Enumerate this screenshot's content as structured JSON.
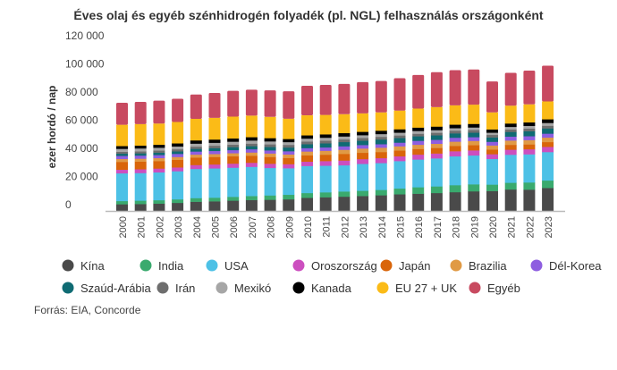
{
  "chart_data": {
    "type": "bar",
    "stacked": true,
    "title": "Éves olaj és egyéb szénhidrogén folyadék (pl. NGL) felhasználás országonként",
    "ylabel": "ezer hordó / nap",
    "xlabel": "",
    "ylim": [
      0,
      120000
    ],
    "yticks": [
      "0",
      "20 000",
      "40 000",
      "60 000",
      "80 000",
      "100 000",
      "120 000"
    ],
    "ytick_values": [
      0,
      20000,
      40000,
      60000,
      80000,
      100000,
      120000
    ],
    "grid": false,
    "legend_position": "bottom",
    "categories": [
      "2000",
      "2001",
      "2002",
      "2003",
      "2004",
      "2005",
      "2006",
      "2007",
      "2008",
      "2009",
      "2010",
      "2011",
      "2012",
      "2013",
      "2014",
      "2015",
      "2016",
      "2017",
      "2018",
      "2019",
      "2020",
      "2021",
      "2022",
      "2023"
    ],
    "series": [
      {
        "name": "Kína",
        "color": "#4a4a4a",
        "values": [
          4800,
          5000,
          5300,
          5800,
          6600,
          6900,
          7400,
          7800,
          8000,
          8300,
          9400,
          9800,
          10200,
          10700,
          11200,
          11900,
          12300,
          12800,
          13400,
          14000,
          14200,
          15300,
          15200,
          16400
        ]
      },
      {
        "name": "India",
        "color": "#3aaa6e",
        "values": [
          2300,
          2400,
          2400,
          2500,
          2600,
          2600,
          2700,
          2900,
          3100,
          3300,
          3400,
          3500,
          3700,
          3700,
          3800,
          4100,
          4600,
          4700,
          5000,
          5000,
          4600,
          4800,
          5100,
          5300
        ]
      },
      {
        "name": "USA",
        "color": "#4dc1e6",
        "values": [
          19700,
          19600,
          19800,
          20000,
          20700,
          20800,
          20700,
          20700,
          19500,
          18800,
          19200,
          18900,
          18600,
          19100,
          19100,
          19500,
          19700,
          19900,
          20500,
          20500,
          18200,
          19900,
          20000,
          20200
        ]
      },
      {
        "name": "Oroszország",
        "color": "#cc4fbf",
        "values": [
          2600,
          2700,
          2700,
          2700,
          2800,
          2800,
          2900,
          2900,
          3000,
          2900,
          3100,
          3300,
          3400,
          3400,
          3500,
          3400,
          3500,
          3500,
          3600,
          3600,
          3400,
          3600,
          3600,
          3700
        ]
      },
      {
        "name": "Japán",
        "color": "#d9650a",
        "values": [
          5500,
          5400,
          5300,
          5400,
          5300,
          5300,
          5200,
          5000,
          4800,
          4400,
          4500,
          4500,
          4700,
          4500,
          4300,
          4100,
          4000,
          3900,
          3800,
          3700,
          3300,
          3400,
          3400,
          3400
        ]
      },
      {
        "name": "Brazilia",
        "color": "#e09a45",
        "values": [
          2100,
          2100,
          2100,
          2000,
          2100,
          2100,
          2200,
          2300,
          2500,
          2500,
          2700,
          2800,
          2900,
          3000,
          3100,
          3000,
          3000,
          3000,
          3000,
          3000,
          2900,
          3100,
          3100,
          3200
        ]
      },
      {
        "name": "Dél-Korea",
        "color": "#8e5ee0",
        "values": [
          2200,
          2200,
          2200,
          2200,
          2200,
          2200,
          2200,
          2300,
          2200,
          2300,
          2400,
          2400,
          2500,
          2500,
          2500,
          2600,
          2800,
          2800,
          2800,
          2700,
          2600,
          2800,
          2800,
          2800
        ]
      },
      {
        "name": "Szaúd-Arábia",
        "color": "#0f6b73",
        "values": [
          1600,
          1600,
          1700,
          1800,
          1900,
          2000,
          2100,
          2200,
          2400,
          2600,
          2800,
          2900,
          3000,
          3100,
          3300,
          3300,
          3200,
          3200,
          3100,
          3200,
          3100,
          3300,
          3500,
          3700
        ]
      },
      {
        "name": "Irán",
        "color": "#6e6e6e",
        "values": [
          1300,
          1400,
          1500,
          1500,
          1600,
          1700,
          1800,
          1800,
          1900,
          1900,
          1900,
          1900,
          1900,
          1900,
          1900,
          1800,
          1800,
          1800,
          1900,
          1900,
          1800,
          1800,
          1900,
          1900
        ]
      },
      {
        "name": "Mexikó",
        "color": "#a6a6a6",
        "values": [
          2100,
          2100,
          2000,
          2000,
          2100,
          2100,
          2100,
          2200,
          2100,
          2000,
          2100,
          2100,
          2100,
          2000,
          2000,
          2000,
          2000,
          1900,
          1800,
          1800,
          1600,
          1800,
          1900,
          2000
        ]
      },
      {
        "name": "Kanada",
        "color": "#000000",
        "values": [
          2000,
          2000,
          2100,
          2200,
          2300,
          2300,
          2300,
          2400,
          2300,
          2200,
          2300,
          2400,
          2400,
          2400,
          2400,
          2400,
          2400,
          2500,
          2500,
          2500,
          2300,
          2400,
          2500,
          2600
        ]
      },
      {
        "name": "EU 27 + UK",
        "color": "#fbbb17",
        "values": [
          15000,
          15200,
          15000,
          15100,
          15200,
          15300,
          15400,
          15200,
          15000,
          14300,
          14100,
          13700,
          13300,
          13000,
          12900,
          13200,
          13400,
          13700,
          13600,
          13600,
          12000,
          12600,
          12700,
          12600
        ]
      },
      {
        "name": "Egyéb",
        "color": "#c84a60",
        "values": [
          15600,
          15800,
          16200,
          16500,
          17300,
          17700,
          18300,
          18400,
          18800,
          19500,
          21000,
          21300,
          21500,
          22200,
          22300,
          23000,
          23900,
          24900,
          25000,
          25000,
          22000,
          23300,
          24000,
          25400
        ]
      }
    ]
  },
  "source": "Forrás: EIA, Concorde"
}
